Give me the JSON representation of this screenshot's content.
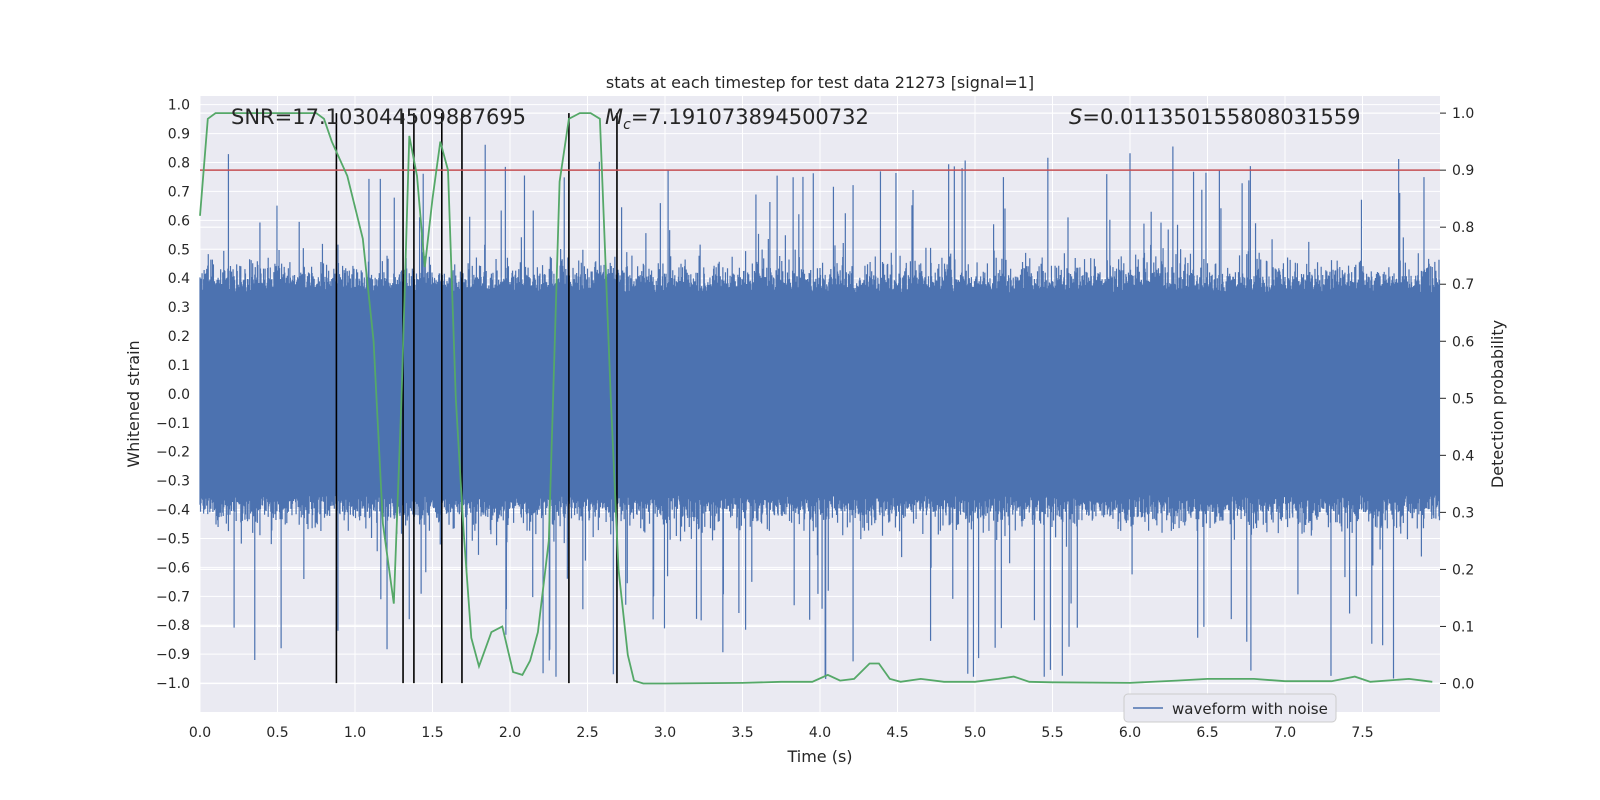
{
  "chart_data": {
    "type": "line",
    "title": "stats at each timestep for test data 21273 [signal=1]",
    "xlabel": "Time (s)",
    "ylabel": "Whitened strain",
    "y2label": "Detection probability",
    "xlim": [
      0,
      8
    ],
    "ylim": [
      -1.1,
      1.03
    ],
    "y2lim": [
      -0.05,
      1.03
    ],
    "x_ticks": [
      0.0,
      0.5,
      1.0,
      1.5,
      2.0,
      2.5,
      3.0,
      3.5,
      4.0,
      4.5,
      5.0,
      5.5,
      6.0,
      6.5,
      7.0,
      7.5
    ],
    "y_ticks": [
      1.0,
      0.9,
      0.8,
      0.7,
      0.6,
      0.5,
      0.4,
      0.3,
      0.2,
      0.1,
      0.0,
      -0.1,
      -0.2,
      -0.3,
      -0.4,
      -0.5,
      -0.6,
      -0.7,
      -0.8,
      -0.9,
      -1.0
    ],
    "y2_ticks": [
      1.0,
      0.9,
      0.8,
      0.7,
      0.6,
      0.5,
      0.4,
      0.3,
      0.2,
      0.1,
      0.0
    ],
    "annotations": {
      "snr": "SNR=17.103044509887695",
      "mc_symbol": "M",
      "mc_subscript": "c",
      "mc_value": "=7.191073894500732",
      "s_symbol": "S",
      "s_value": "=0.011350155808031559"
    },
    "threshold": {
      "y2": 0.9,
      "color": "#c44e52"
    },
    "vertical_lines_x": [
      0.88,
      1.31,
      1.38,
      1.56,
      1.69,
      2.38,
      2.69
    ],
    "legend": {
      "label": "waveform with noise",
      "position": "lower right"
    },
    "waveform": {
      "name": "waveform with noise",
      "color": "#4c72b0",
      "band_envelope": 0.35,
      "peak_positive": 0.87,
      "peak_negative": -1.0
    },
    "probability": {
      "color": "#55a868",
      "x": [
        0.0,
        0.05,
        0.1,
        0.15,
        0.25,
        0.4,
        0.55,
        0.7,
        0.75,
        0.8,
        0.85,
        0.95,
        1.05,
        1.12,
        1.18,
        1.25,
        1.3,
        1.35,
        1.4,
        1.45,
        1.5,
        1.55,
        1.6,
        1.65,
        1.7,
        1.75,
        1.8,
        1.88,
        1.95,
        2.02,
        2.08,
        2.13,
        2.18,
        2.25,
        2.32,
        2.38,
        2.45,
        2.52,
        2.58,
        2.65,
        2.7,
        2.76,
        2.8,
        2.86,
        2.93,
        3.0,
        3.5,
        3.75,
        3.95,
        4.05,
        4.13,
        4.22,
        4.32,
        4.38,
        4.45,
        4.52,
        4.65,
        4.8,
        5.0,
        5.15,
        5.25,
        5.35,
        5.5,
        6.0,
        6.3,
        6.5,
        6.8,
        7.0,
        7.3,
        7.45,
        7.55,
        7.8,
        7.95
      ],
      "y": [
        0.82,
        0.99,
        1.0,
        1.0,
        1.0,
        1.0,
        1.0,
        1.0,
        1.0,
        0.99,
        0.95,
        0.89,
        0.78,
        0.6,
        0.28,
        0.14,
        0.5,
        0.96,
        0.89,
        0.73,
        0.85,
        0.95,
        0.9,
        0.5,
        0.27,
        0.08,
        0.03,
        0.09,
        0.1,
        0.02,
        0.015,
        0.04,
        0.09,
        0.25,
        0.88,
        0.99,
        1.0,
        1.0,
        0.99,
        0.5,
        0.2,
        0.05,
        0.005,
        0.0,
        0.0,
        0.0,
        0.001,
        0.003,
        0.003,
        0.015,
        0.005,
        0.008,
        0.035,
        0.035,
        0.008,
        0.003,
        0.008,
        0.003,
        0.003,
        0.008,
        0.012,
        0.003,
        0.002,
        0.001,
        0.005,
        0.008,
        0.008,
        0.004,
        0.004,
        0.012,
        0.003,
        0.008,
        0.003
      ]
    }
  }
}
